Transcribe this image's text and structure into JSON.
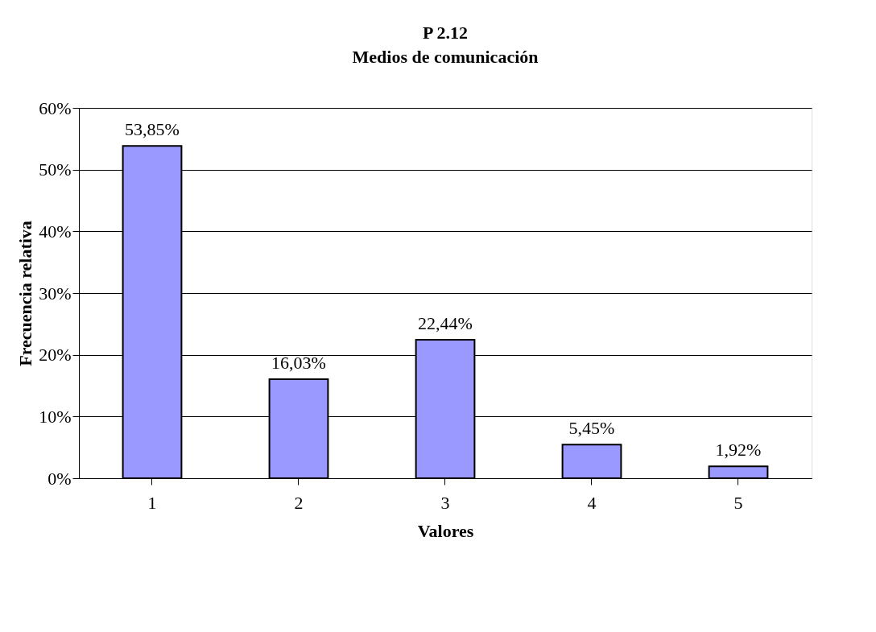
{
  "chart_data": {
    "type": "bar",
    "title": "P 2.12",
    "subtitle": "Medios de comunicación",
    "xlabel": "Valores",
    "ylabel": "Frecuencia relativa",
    "categories": [
      "1",
      "2",
      "3",
      "4",
      "5"
    ],
    "values": [
      53.85,
      16.03,
      22.44,
      5.45,
      1.92
    ],
    "color": "#9999ff",
    "value_labels": [
      "53,85%",
      "16,03%",
      "22,44%",
      "5,45%",
      "1,92%"
    ],
    "ylim": [
      0,
      60
    ],
    "yticks": [
      {
        "value": 0,
        "label": "0%"
      },
      {
        "value": 10,
        "label": "10%"
      },
      {
        "value": 20,
        "label": "20%"
      },
      {
        "value": 30,
        "label": "30%"
      },
      {
        "value": 40,
        "label": "40%"
      },
      {
        "value": 50,
        "label": "50%"
      },
      {
        "value": 60,
        "label": "60%"
      }
    ],
    "grid": "y"
  }
}
